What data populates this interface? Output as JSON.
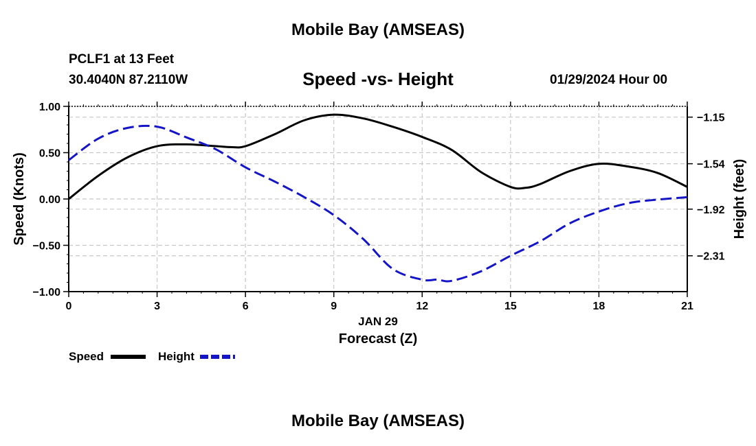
{
  "header": {
    "title": "Mobile Bay (AMSEAS)",
    "station": "PCLF1 at 13 Feet",
    "location": "30.4040N  87.2110W",
    "subtitle": "Speed -vs- Height",
    "date": "01/29/2024 Hour 00"
  },
  "footer": {
    "title": "Mobile Bay (AMSEAS)"
  },
  "colors": {
    "speed": "#000000",
    "height": "#1515c8",
    "grid": "#c8c8c8"
  },
  "chart_data": {
    "type": "line",
    "title": "Speed -vs- Height",
    "xlabel": "Forecast (Z)",
    "xsublabel": "JAN 29",
    "xlim": [
      0,
      21
    ],
    "xticks": [
      0,
      3,
      6,
      9,
      12,
      15,
      18,
      21
    ],
    "xtick_labels": [
      "0",
      "3",
      "6",
      "9",
      "12",
      "15",
      "18",
      "21"
    ],
    "ylabel_left": "Speed (Knots)",
    "ylim_left": [
      -1.0,
      1.0
    ],
    "yticks_left": [
      -1.0,
      -0.5,
      0.0,
      0.5,
      1.0
    ],
    "ytick_labels_left": [
      "−1.00",
      "−0.50",
      "0.00",
      "0.50",
      "1.00"
    ],
    "ylabel_right": "Height (feet)",
    "ylim_right": [
      -2.61,
      -1.06
    ],
    "yticks_right": [
      -1.15,
      -1.54,
      -1.92,
      -2.31
    ],
    "ytick_labels_right": [
      "−1.15",
      "−1.54",
      "−1.92",
      "−2.31"
    ],
    "grid": true,
    "legend_position": "bottom-left",
    "series": [
      {
        "name": "Speed",
        "axis": "left",
        "style": "solid",
        "x": [
          0,
          1,
          2,
          3,
          4,
          5,
          5.5,
          6,
          7,
          8,
          9,
          10,
          11,
          12,
          13,
          14,
          15,
          15.5,
          16,
          17,
          18,
          19,
          20,
          21
        ],
        "y": [
          0.0,
          0.25,
          0.45,
          0.57,
          0.59,
          0.57,
          0.56,
          0.57,
          0.7,
          0.85,
          0.91,
          0.87,
          0.78,
          0.67,
          0.53,
          0.29,
          0.13,
          0.12,
          0.16,
          0.3,
          0.38,
          0.35,
          0.28,
          0.13
        ]
      },
      {
        "name": "Height",
        "axis": "right",
        "style": "dashed",
        "x": [
          0,
          1,
          2,
          3,
          4,
          5,
          6,
          7,
          8,
          9,
          10,
          11,
          12,
          12.5,
          13,
          14,
          15,
          16,
          17,
          18,
          19,
          20,
          21
        ],
        "y": [
          -1.51,
          -1.33,
          -1.24,
          -1.23,
          -1.32,
          -1.42,
          -1.57,
          -1.69,
          -1.82,
          -1.97,
          -2.17,
          -2.42,
          -2.51,
          -2.51,
          -2.52,
          -2.44,
          -2.31,
          -2.19,
          -2.04,
          -1.94,
          -1.87,
          -1.84,
          -1.82
        ]
      }
    ]
  }
}
